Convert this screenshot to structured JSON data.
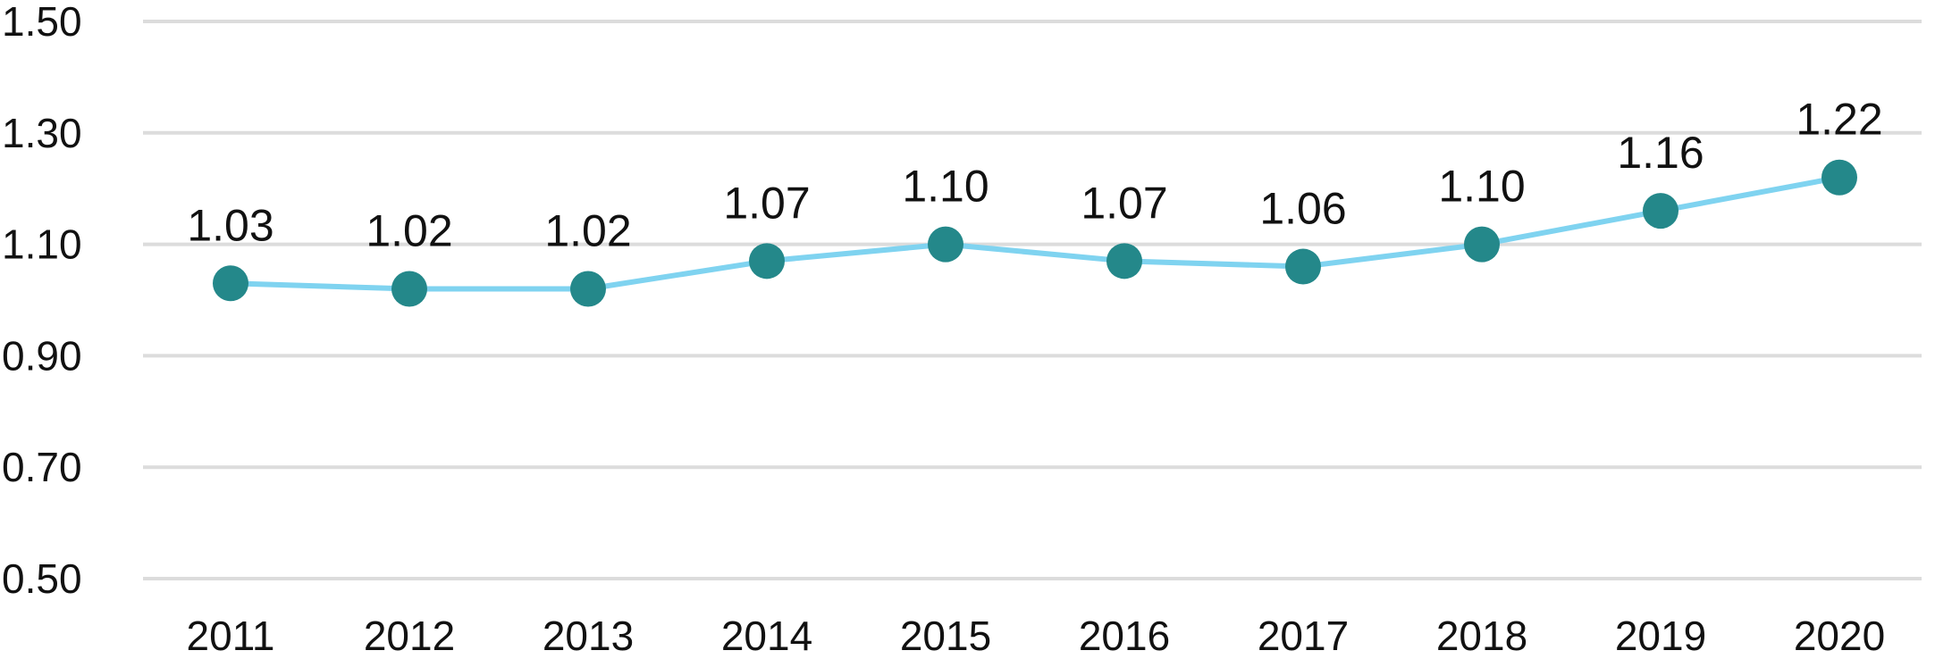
{
  "chart_data": {
    "type": "line",
    "title": "",
    "xlabel": "",
    "ylabel": "",
    "ylim": [
      0.5,
      1.5
    ],
    "yticks": [
      "0.50",
      "0.70",
      "0.90",
      "1.10",
      "1.30",
      "1.50"
    ],
    "categories": [
      "2011",
      "2012",
      "2013",
      "2014",
      "2015",
      "2016",
      "2017",
      "2018",
      "2019",
      "2020"
    ],
    "series": [
      {
        "values": [
          1.03,
          1.02,
          1.02,
          1.07,
          1.1,
          1.07,
          1.06,
          1.1,
          1.16,
          1.22
        ],
        "labels": [
          "1.03",
          "1.02",
          "1.02",
          "1.07",
          "1.10",
          "1.07",
          "1.06",
          "1.10",
          "1.16",
          "1.22"
        ],
        "line_color": "#7fd3f0",
        "marker_color": "#24888a"
      }
    ],
    "grid": true,
    "legend": "none",
    "grid_color": "#dcdcdc"
  }
}
